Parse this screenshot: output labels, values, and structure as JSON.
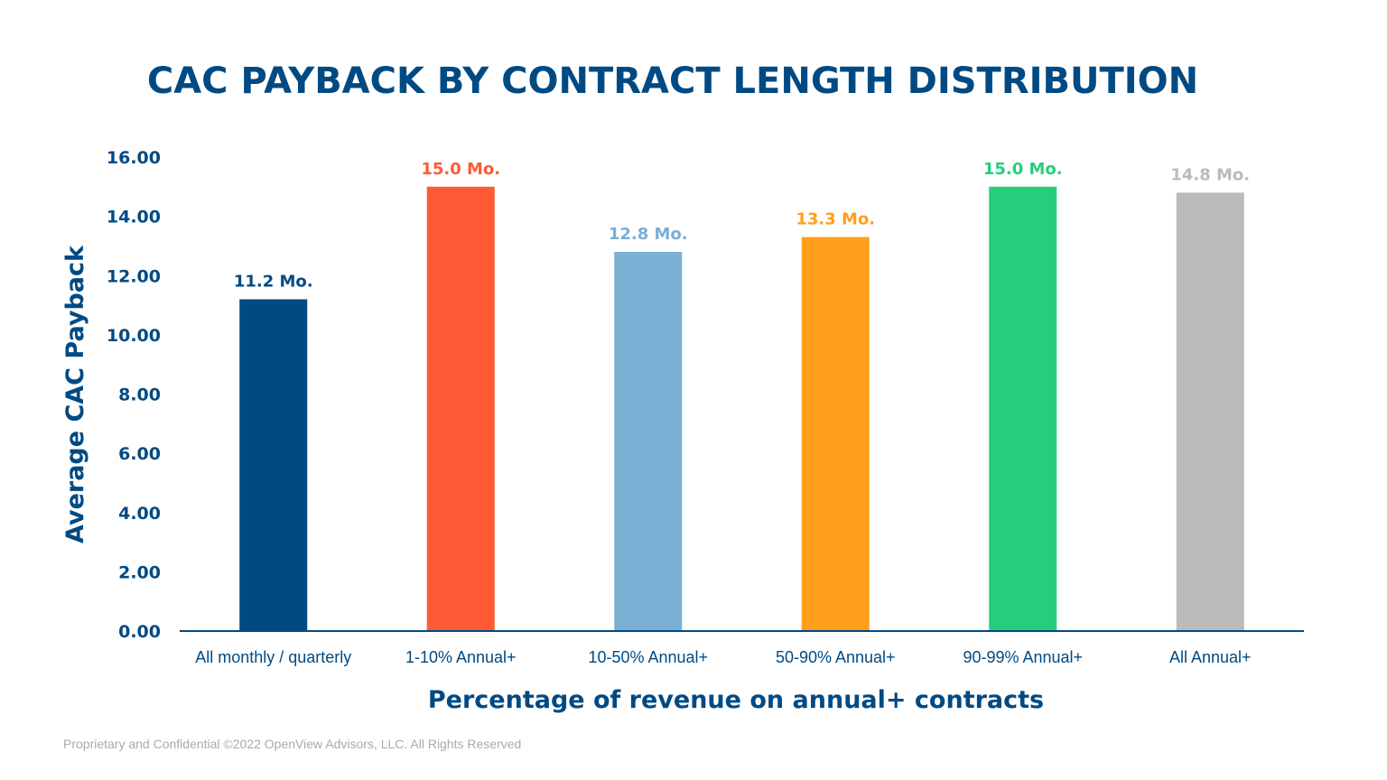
{
  "chart_data": {
    "type": "bar",
    "title": "CAC PAYBACK BY CONTRACT LENGTH DISTRIBUTION",
    "xlabel": "Percentage of revenue on annual+ contracts",
    "ylabel": "Average CAC Payback",
    "categories": [
      "All monthly / quarterly",
      "1-10% Annual+",
      "10-50% Annual+",
      "50-90% Annual+",
      "90-99% Annual+",
      "All Annual+"
    ],
    "values": [
      11.2,
      15.0,
      12.8,
      13.3,
      15.0,
      14.8
    ],
    "data_labels": [
      "11.2 Mo.",
      "15.0 Mo.",
      "12.8 Mo.",
      "13.3 Mo.",
      "15.0 Mo.",
      "14.8 Mo."
    ],
    "colors": [
      "#004A84",
      "#FF5A36",
      "#7BAFD4",
      "#FF9E1B",
      "#26CE7C",
      "#BBBBBB"
    ],
    "ylim": [
      0,
      16
    ],
    "yticks": [
      "0.00",
      "2.00",
      "4.00",
      "6.00",
      "8.00",
      "10.00",
      "12.00",
      "14.00",
      "16.00"
    ],
    "grid": false,
    "legend": "none"
  },
  "footer": "Proprietary and Confidential ©2022 OpenView Advisors, LLC. All Rights Reserved"
}
